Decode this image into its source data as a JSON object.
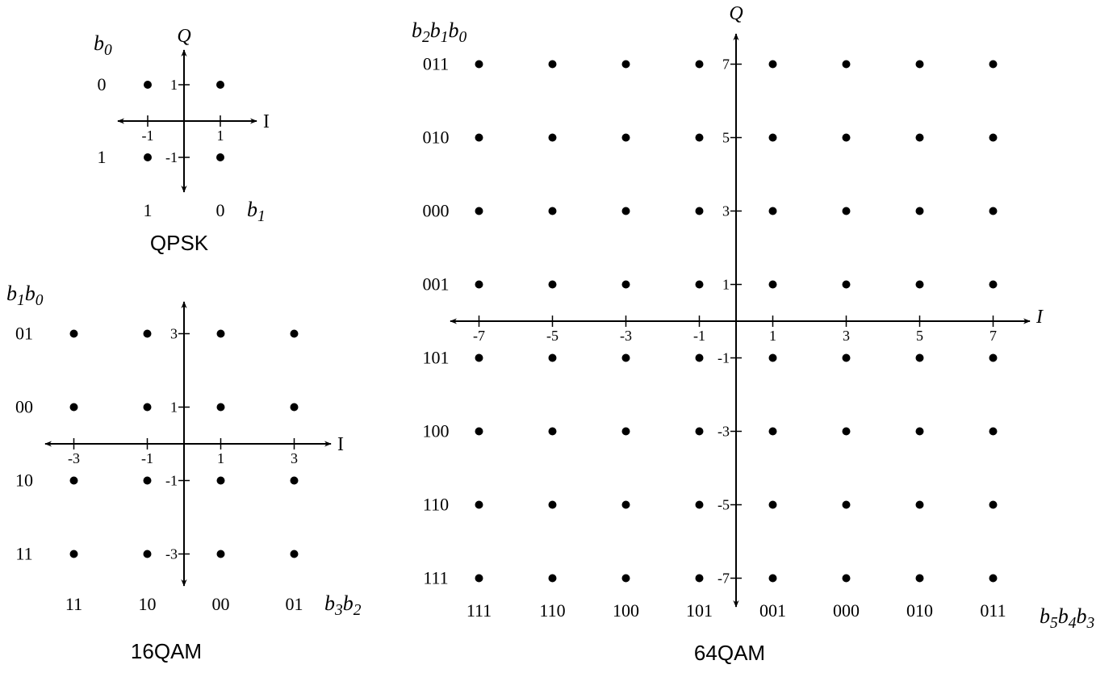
{
  "diagrams": [
    {
      "id": "qpsk",
      "caption": "QPSK",
      "x_axis_label": "I",
      "y_axis_label": "Q",
      "x_ticks": [
        -1,
        1
      ],
      "y_ticks": [
        1,
        -1
      ],
      "row_bits_var": [
        "b",
        "0",
        ""
      ],
      "col_bits_var": [
        "b",
        "1",
        ""
      ],
      "row_levels": [
        1,
        -1
      ],
      "row_codes": [
        "0",
        "1"
      ],
      "col_levels": [
        -1,
        1
      ],
      "col_codes": [
        "1",
        "0"
      ],
      "points": [
        [
          -1,
          1
        ],
        [
          1,
          1
        ],
        [
          -1,
          -1
        ],
        [
          1,
          -1
        ]
      ]
    },
    {
      "id": "qam16",
      "caption": "16QAM",
      "x_axis_label": "I",
      "y_axis_label": "",
      "x_ticks": [
        -3,
        -1,
        1,
        3
      ],
      "y_ticks": [
        3,
        1,
        -1,
        -3
      ],
      "row_bits_var": [
        "b",
        "1",
        "b",
        "0"
      ],
      "col_bits_var": [
        "b",
        "3",
        "b",
        "2"
      ],
      "row_levels": [
        3,
        1,
        -1,
        -3
      ],
      "row_codes": [
        "01",
        "00",
        "10",
        "11"
      ],
      "col_levels": [
        -3,
        -1,
        1,
        3
      ],
      "col_codes": [
        "11",
        "10",
        "00",
        "01"
      ],
      "points": [
        [
          -3,
          3
        ],
        [
          -1,
          3
        ],
        [
          1,
          3
        ],
        [
          3,
          3
        ],
        [
          -3,
          1
        ],
        [
          -1,
          1
        ],
        [
          1,
          1
        ],
        [
          3,
          1
        ],
        [
          -3,
          -1
        ],
        [
          -1,
          -1
        ],
        [
          1,
          -1
        ],
        [
          3,
          -1
        ],
        [
          -3,
          -3
        ],
        [
          -1,
          -3
        ],
        [
          1,
          -3
        ],
        [
          3,
          -3
        ]
      ]
    },
    {
      "id": "qam64",
      "caption": "64QAM",
      "x_axis_label": "I",
      "y_axis_label": "Q",
      "x_ticks": [
        -7,
        -5,
        -3,
        -1,
        1,
        3,
        5,
        7
      ],
      "y_ticks": [
        7,
        5,
        3,
        1,
        -1,
        -3,
        -5,
        -7
      ],
      "row_bits_var": [
        "b",
        "2",
        "b",
        "1",
        "b",
        "0"
      ],
      "col_bits_var": [
        "b",
        "5",
        "b",
        "4",
        "b",
        "3"
      ],
      "row_levels": [
        7,
        5,
        3,
        1,
        -1,
        -3,
        -5,
        -7
      ],
      "row_codes": [
        "011",
        "010",
        "000",
        "001",
        "101",
        "100",
        "110",
        "111"
      ],
      "col_levels": [
        -7,
        -5,
        -3,
        -1,
        1,
        3,
        5,
        7
      ],
      "col_codes": [
        "111",
        "110",
        "100",
        "101",
        "001",
        "000",
        "010",
        "011"
      ],
      "points": "grid"
    }
  ]
}
